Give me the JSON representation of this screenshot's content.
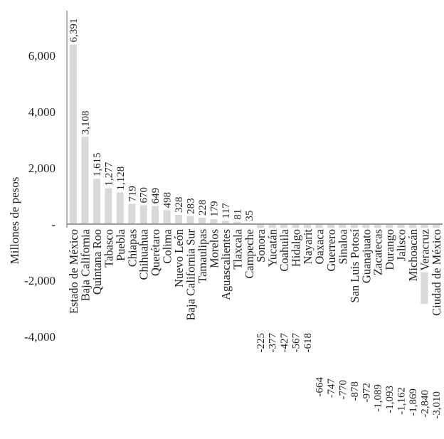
{
  "chart_data": {
    "type": "bar",
    "title": "",
    "xlabel": "",
    "ylabel": "Millones de pesos",
    "ylim": [
      -4000,
      7000
    ],
    "yticks": [
      6000,
      4000,
      2000,
      0,
      -2000,
      -4000
    ],
    "ytick_labels": [
      "6,000",
      "4,000",
      "2,000",
      "-",
      "-2,000",
      "-4,000"
    ],
    "grid": false,
    "bar_color": "#d9d9d9",
    "categories": [
      "Estado de México",
      "Baja California",
      "Quintana Roo",
      "Tabasco",
      "Puebla",
      "Chiapas",
      "Chihuahua",
      "Querétaro",
      "Colima",
      "Nuevo León",
      "Baja California Sur",
      "Tamaulipas",
      "Morelos",
      "Aguascalientes",
      "Tlaxcala",
      "Campeche",
      "Sonora",
      "Yucatán",
      "Coahuila",
      "Hidalgo",
      "Nayarit",
      "Oaxaca",
      "Guerrero",
      "Sinaloa",
      "San Luis Potosí",
      "Guanajuato",
      "Zacatecas",
      "Durango",
      "Jalisco",
      "Michoacán",
      "Veracruz",
      "Ciudad de México"
    ],
    "values": [
      6391,
      3108,
      1615,
      1277,
      1128,
      719,
      670,
      649,
      498,
      328,
      283,
      228,
      179,
      117,
      81,
      35,
      -225,
      -377,
      -427,
      -567,
      -618,
      -664,
      -747,
      -770,
      -878,
      -972,
      -1089,
      -1093,
      -1162,
      -1869,
      -2840,
      -3010
    ],
    "value_labels": [
      "6,391",
      "3,108",
      "1,615",
      "1,277",
      "1,128",
      "719",
      "670",
      "649",
      "498",
      "328",
      "283",
      "228",
      "179",
      "117",
      "81",
      "35",
      "-225",
      "-377",
      "-427",
      "-567",
      "-618",
      "-664",
      "-747",
      "-770",
      "-878",
      "-972",
      "-1,089",
      "-1,093",
      "-1,162",
      "-1,869",
      "-2,840",
      "-3,010"
    ]
  }
}
